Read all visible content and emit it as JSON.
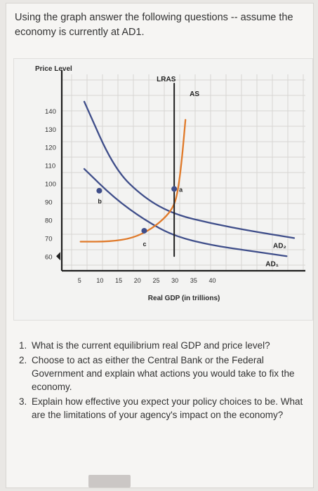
{
  "intro_text": "Using the graph answer the following questions -- assume the economy is currently at AD1.",
  "questions": [
    {
      "num": "1.",
      "text": "What is the current equilibrium real GDP and price level?"
    },
    {
      "num": "2.",
      "text": "Choose to act as either the Central Bank or the Federal Government and explain what actions you would take to fix the economy."
    },
    {
      "num": "3.",
      "text": "Explain how effective you expect your policy choices to be. What are the limitations of your agency's impact on the economy?"
    }
  ],
  "chart_data": {
    "type": "line",
    "title": "",
    "xlabel": "Real GDP (in trillions)",
    "ylabel": "Price Level",
    "x_ticks": [
      "5",
      "10",
      "15",
      "20",
      "25",
      "30",
      "35",
      "40"
    ],
    "y_ticks": [
      "60",
      "70",
      "80",
      "90",
      "100",
      "110",
      "120",
      "130",
      "140"
    ],
    "xlim": [
      0,
      65
    ],
    "ylim": [
      52,
      160
    ],
    "grid": true,
    "colors": {
      "demand": "#3f4e8a",
      "supply": "#e07a2a",
      "axis": "#1e1e1e",
      "lras": "#1e1e1e"
    },
    "series": [
      {
        "name": "AD₂",
        "kind": "demand",
        "points": [
          [
            6,
            145
          ],
          [
            14,
            108
          ],
          [
            22,
            92
          ],
          [
            30,
            83
          ],
          [
            40,
            78
          ],
          [
            50,
            74
          ],
          [
            62,
            70
          ]
        ]
      },
      {
        "name": "AD₁",
        "kind": "demand",
        "points": [
          [
            6,
            108
          ],
          [
            14,
            92
          ],
          [
            22,
            80
          ],
          [
            30,
            71
          ],
          [
            40,
            66
          ],
          [
            50,
            63
          ],
          [
            60,
            60
          ]
        ]
      },
      {
        "name": "AS",
        "kind": "supply",
        "points": [
          [
            5,
            68
          ],
          [
            13,
            68
          ],
          [
            19,
            70
          ],
          [
            24,
            75
          ],
          [
            28,
            82
          ],
          [
            30,
            88
          ],
          [
            31,
            96
          ],
          [
            32,
            112
          ],
          [
            33,
            135
          ]
        ]
      },
      {
        "name": "LRAS",
        "kind": "lras",
        "points": [
          [
            30,
            60
          ],
          [
            30,
            155
          ]
        ]
      }
    ],
    "points": [
      {
        "label": "a",
        "x": 30,
        "y": 97
      },
      {
        "label": "b",
        "x": 10,
        "y": 96
      },
      {
        "label": "c",
        "x": 22,
        "y": 74
      }
    ],
    "ad_drop_y": 60
  }
}
